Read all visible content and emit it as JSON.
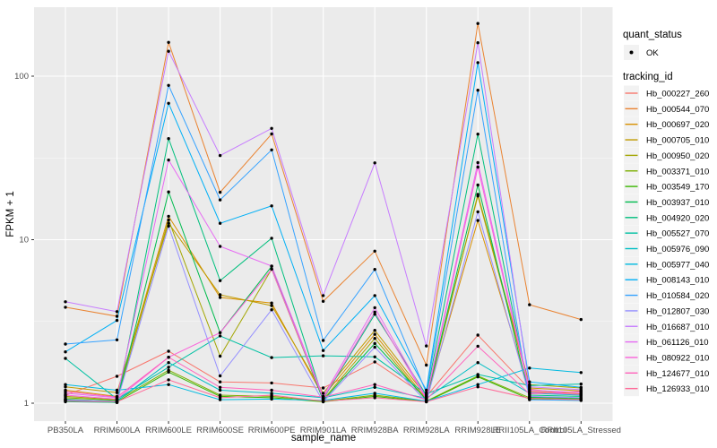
{
  "page": {
    "background": "#FFFFFF",
    "panel_background": "#EBEBEB",
    "gridline_color": "#FFFFFF",
    "tick_label_color": "#4D4D4D",
    "axis_title_color": "#000000",
    "legend_key_background": "#F2F2F2",
    "point_color": "#000000"
  },
  "axes": {
    "x_title": "sample_name",
    "y_title": "FPKM + 1"
  },
  "legend": {
    "quant_status_title": "quant_status",
    "quant_status_items": [
      {
        "label": "OK",
        "marker": "point"
      }
    ],
    "tracking_title": "tracking_id"
  },
  "chart_data": {
    "type": "line",
    "title": "",
    "xlabel": "sample_name",
    "ylabel": "FPKM + 1",
    "y_scale": "log10",
    "y_ticks": [
      1,
      10,
      100
    ],
    "y_minor_ticks": [
      3.162,
      31.62
    ],
    "ylim": [
      0.95,
      260
    ],
    "grid": true,
    "legend_position": "right",
    "point_marker": "filled-circle",
    "categories": [
      "PB350LA",
      "RRIM600LA",
      "RRIM600LE",
      "RRIM600SE",
      "RRIM600PE",
      "RRIM901LA",
      "RRIM928BA",
      "RRIM928LA",
      "RRIM928LE",
      "RRII105LA_Control",
      "RRII105LA_Stressed"
    ],
    "series": [
      {
        "name": "Hb_000227_260",
        "color": "#F8766D",
        "values": [
          1.12,
          1.46,
          2.08,
          1.35,
          1.33,
          1.24,
          1.79,
          1.1,
          2.61,
          1.22,
          1.12
        ]
      },
      {
        "name": "Hb_000544_070",
        "color": "#EA8331",
        "values": [
          3.86,
          3.4,
          161,
          19.5,
          44.3,
          4.2,
          8.51,
          1.71,
          210,
          4.0,
          3.25
        ]
      },
      {
        "name": "Hb_000697_020",
        "color": "#D89000",
        "values": [
          1.2,
          1.1,
          13.9,
          4.43,
          4.1,
          1.1,
          2.64,
          1.06,
          13.1,
          1.18,
          1.14
        ]
      },
      {
        "name": "Hb_000705_010",
        "color": "#C09B00",
        "values": [
          1.26,
          1.16,
          12.6,
          4.6,
          3.95,
          1.15,
          2.79,
          1.1,
          18.5,
          1.24,
          1.19
        ]
      },
      {
        "name": "Hb_000950_020",
        "color": "#A3A500",
        "values": [
          1.1,
          1.05,
          13.2,
          1.94,
          6.6,
          1.05,
          2.49,
          1.04,
          18.9,
          1.3,
          1.24
        ]
      },
      {
        "name": "Hb_003371_010",
        "color": "#7CAE00",
        "values": [
          1.08,
          1.04,
          1.59,
          1.12,
          1.1,
          1.03,
          1.12,
          1.03,
          1.47,
          1.08,
          1.06
        ]
      },
      {
        "name": "Hb_003549_170",
        "color": "#39B600",
        "values": [
          1.06,
          1.02,
          1.55,
          1.1,
          1.08,
          1.02,
          1.1,
          1.02,
          1.45,
          1.06,
          1.04
        ]
      },
      {
        "name": "Hb_003937_010",
        "color": "#00BB4E",
        "values": [
          1.04,
          1.01,
          19.6,
          2.7,
          6.87,
          1.04,
          2.32,
          1.05,
          21.6,
          1.09,
          1.07
        ]
      },
      {
        "name": "Hb_004920_020",
        "color": "#00BF7D",
        "values": [
          1.02,
          1.01,
          41.5,
          5.62,
          10.2,
          1.06,
          3.5,
          1.12,
          44.2,
          1.12,
          1.1
        ]
      },
      {
        "name": "Hb_005527_070",
        "color": "#00C1A3",
        "values": [
          1.88,
          1.06,
          1.66,
          2.58,
          1.9,
          1.95,
          1.92,
          1.14,
          1.5,
          1.28,
          1.31
        ]
      },
      {
        "name": "Hb_005976_090",
        "color": "#00BFC4",
        "values": [
          1.05,
          1.03,
          1.77,
          1.2,
          1.15,
          1.08,
          1.25,
          1.07,
          1.77,
          1.15,
          1.12
        ]
      },
      {
        "name": "Hb_005977_040",
        "color": "#00BAE0",
        "values": [
          1.3,
          1.2,
          1.3,
          1.05,
          1.06,
          1.04,
          1.15,
          1.03,
          1.3,
          1.64,
          1.54
        ]
      },
      {
        "name": "Hb_008143_010",
        "color": "#00B0F6",
        "values": [
          2.06,
          3.21,
          68.2,
          12.6,
          16.1,
          2.1,
          4.55,
          1.2,
          121,
          1.35,
          1.25
        ]
      },
      {
        "name": "Hb_010584_020",
        "color": "#35A2FF",
        "values": [
          2.3,
          2.44,
          87.8,
          17.5,
          35.4,
          2.42,
          6.58,
          1.16,
          82.0,
          1.05,
          1.04
        ]
      },
      {
        "name": "Hb_012807_030",
        "color": "#9590FF",
        "values": [
          1.05,
          1.02,
          12.1,
          1.47,
          3.73,
          1.02,
          2.2,
          1.02,
          14.8,
          1.1,
          1.08
        ]
      },
      {
        "name": "Hb_016687_010",
        "color": "#C77CFF",
        "values": [
          4.17,
          3.63,
          142,
          32.7,
          47.9,
          4.55,
          29.5,
          2.24,
          160,
          1.26,
          1.21
        ]
      },
      {
        "name": "Hb_061126_010",
        "color": "#E76BF3",
        "values": [
          1.15,
          1.08,
          30.7,
          9.1,
          6.9,
          1.1,
          3.84,
          1.08,
          29.6,
          1.2,
          1.16
        ]
      },
      {
        "name": "Hb_080922_010",
        "color": "#FA62DB",
        "values": [
          1.12,
          1.06,
          1.91,
          2.7,
          6.6,
          1.07,
          3.61,
          1.06,
          27.8,
          1.17,
          1.13
        ]
      },
      {
        "name": "Hb_124677_010",
        "color": "#FF62BC",
        "values": [
          1.18,
          1.09,
          1.91,
          1.25,
          1.2,
          1.09,
          1.3,
          1.05,
          2.23,
          1.14,
          1.18
        ]
      },
      {
        "name": "Hb_126933_010",
        "color": "#FF6A98",
        "values": [
          1.03,
          1.02,
          1.39,
          1.08,
          1.12,
          1.03,
          1.08,
          1.02,
          1.26,
          1.07,
          1.05
        ]
      }
    ]
  }
}
